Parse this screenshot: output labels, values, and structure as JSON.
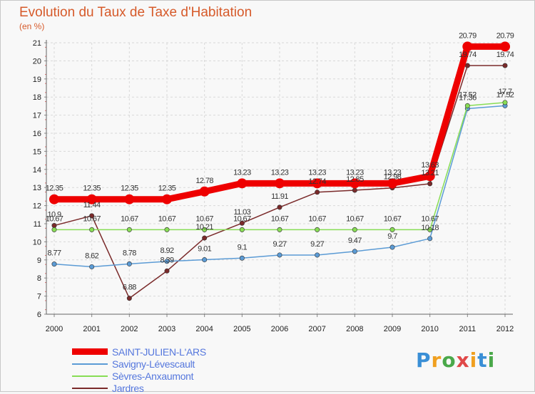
{
  "title": "Evolution du Taux de Taxe d'Habitation",
  "unit": "(en %)",
  "brand": {
    "text": "Proxiti",
    "letter_colors": [
      "#3a8fd6",
      "#f0a020",
      "#4aa84a",
      "#e04848",
      "#f0a020",
      "#3a8fd6",
      "#4aa84a"
    ]
  },
  "chart_data": {
    "type": "line",
    "title": "Evolution du Taux de Taxe d'Habitation",
    "ylabel": "(en %)",
    "xlabel": "",
    "x": [
      "2000",
      "2001",
      "2002",
      "2003",
      "2004",
      "2005",
      "2006",
      "2007",
      "2008",
      "2009",
      "2010",
      "2011",
      "2012"
    ],
    "ylim": [
      6,
      21
    ],
    "yticks": [
      6,
      7,
      8,
      9,
      10,
      11,
      12,
      13,
      14,
      15,
      16,
      17,
      18,
      19,
      20,
      21
    ],
    "grid": true,
    "legend_position": "bottom-left",
    "series": [
      {
        "name": "SAINT-JULIEN-L'ARS",
        "color": "#ee0000",
        "values": [
          12.35,
          12.35,
          12.35,
          12.35,
          12.78,
          13.23,
          13.23,
          13.23,
          13.23,
          13.23,
          13.63,
          20.79,
          20.79
        ],
        "labels": [
          "12.35",
          "12.35",
          "12.35",
          "12.35",
          "12.78",
          "13.23",
          "13.23",
          "13.23",
          "13.23",
          "13.23",
          "13.63",
          "20.79",
          "20.79"
        ]
      },
      {
        "name": "Savigny-Lévescault",
        "color": "#5b9bd5",
        "values": [
          8.77,
          8.62,
          8.78,
          8.92,
          9.01,
          9.1,
          9.27,
          9.27,
          9.47,
          9.7,
          10.18,
          17.36,
          17.52
        ],
        "labels": [
          "8.77",
          "8.62",
          "8.78",
          "8.92",
          "9.01",
          "9.1",
          "9.27",
          "9.27",
          "9.47",
          "9.7",
          "10.18",
          "17.36",
          "17.52"
        ]
      },
      {
        "name": "Sèvres-Anxaumont",
        "color": "#88dd55",
        "values": [
          10.67,
          10.67,
          10.67,
          10.67,
          10.67,
          10.67,
          10.67,
          10.67,
          10.67,
          10.67,
          10.67,
          17.52,
          17.7
        ],
        "labels": [
          "10.67",
          "10.67",
          "10.67",
          "10.67",
          "10.67",
          "10.67",
          "10.67",
          "10.67",
          "10.67",
          "10.67",
          "10.67",
          "17.52",
          "17.7"
        ]
      },
      {
        "name": "Jardres",
        "color": "#7a2a2a",
        "values": [
          10.9,
          11.44,
          6.88,
          8.39,
          10.21,
          11.03,
          11.91,
          12.74,
          12.85,
          12.98,
          13.21,
          19.74,
          19.74
        ],
        "labels": [
          "10.9",
          "11.44",
          "6.88",
          "8.39",
          "10.21",
          "11.03",
          "11.91",
          "12.74",
          "12.85",
          "12.98",
          "13.21",
          "19.74",
          "19.74"
        ]
      }
    ]
  }
}
